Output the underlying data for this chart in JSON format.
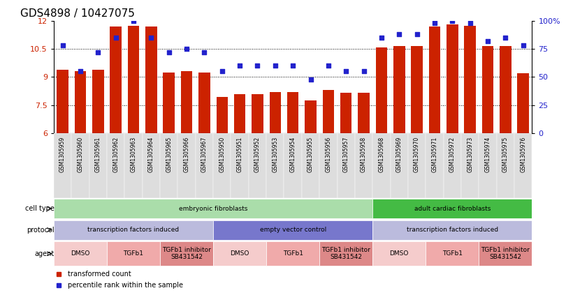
{
  "title": "GDS4898 / 10427075",
  "samples": [
    "GSM1305959",
    "GSM1305960",
    "GSM1305961",
    "GSM1305962",
    "GSM1305963",
    "GSM1305964",
    "GSM1305965",
    "GSM1305966",
    "GSM1305967",
    "GSM1305950",
    "GSM1305951",
    "GSM1305952",
    "GSM1305953",
    "GSM1305954",
    "GSM1305955",
    "GSM1305956",
    "GSM1305957",
    "GSM1305958",
    "GSM1305968",
    "GSM1305969",
    "GSM1305970",
    "GSM1305971",
    "GSM1305972",
    "GSM1305973",
    "GSM1305974",
    "GSM1305975",
    "GSM1305976"
  ],
  "bar_values": [
    9.4,
    9.3,
    9.4,
    11.7,
    11.75,
    11.7,
    9.25,
    9.3,
    9.25,
    7.95,
    8.1,
    8.1,
    8.2,
    8.2,
    7.75,
    8.3,
    8.15,
    8.15,
    10.6,
    10.65,
    10.65,
    11.7,
    11.8,
    11.75,
    10.65,
    10.65,
    9.2
  ],
  "dot_values": [
    78,
    55,
    72,
    85,
    100,
    85,
    72,
    75,
    72,
    55,
    60,
    60,
    60,
    60,
    48,
    60,
    55,
    55,
    85,
    88,
    88,
    98,
    100,
    98,
    82,
    85,
    78
  ],
  "bar_color": "#cc2200",
  "dot_color": "#2222cc",
  "ylim_left": [
    6,
    12
  ],
  "ylim_right": [
    0,
    100
  ],
  "yticks_left": [
    6,
    7.5,
    9,
    10.5,
    12
  ],
  "ytick_labels_left": [
    "6",
    "7.5",
    "9",
    "10.5",
    "12"
  ],
  "yticks_right": [
    0,
    25,
    50,
    75,
    100
  ],
  "ytick_labels_right": [
    "0",
    "25",
    "50",
    "75",
    "100%"
  ],
  "cell_type_groups": [
    {
      "label": "embryonic fibroblasts",
      "start": 0,
      "end": 17,
      "color": "#aaddaa"
    },
    {
      "label": "adult cardiac fibroblasts",
      "start": 18,
      "end": 26,
      "color": "#44bb44"
    }
  ],
  "protocol_groups": [
    {
      "label": "transcription factors induced",
      "start": 0,
      "end": 8,
      "color": "#bbbbdd"
    },
    {
      "label": "empty vector control",
      "start": 9,
      "end": 17,
      "color": "#7777cc"
    },
    {
      "label": "transcription factors induced",
      "start": 18,
      "end": 26,
      "color": "#bbbbdd"
    }
  ],
  "agent_groups": [
    {
      "label": "DMSO",
      "start": 0,
      "end": 2,
      "color": "#f5cccc"
    },
    {
      "label": "TGFb1",
      "start": 3,
      "end": 5,
      "color": "#f0aaaa"
    },
    {
      "label": "TGFb1 inhibitor\nSB431542",
      "start": 6,
      "end": 8,
      "color": "#dd8888"
    },
    {
      "label": "DMSO",
      "start": 9,
      "end": 11,
      "color": "#f5cccc"
    },
    {
      "label": "TGFb1",
      "start": 12,
      "end": 14,
      "color": "#f0aaaa"
    },
    {
      "label": "TGFb1 inhibitor\nSB431542",
      "start": 15,
      "end": 17,
      "color": "#dd8888"
    },
    {
      "label": "DMSO",
      "start": 18,
      "end": 20,
      "color": "#f5cccc"
    },
    {
      "label": "TGFb1",
      "start": 21,
      "end": 23,
      "color": "#f0aaaa"
    },
    {
      "label": "TGFb1 inhibitor\nSB431542",
      "start": 24,
      "end": 26,
      "color": "#dd8888"
    }
  ],
  "tick_bg_color": "#dddddd",
  "legend_items": [
    {
      "label": "transformed count",
      "color": "#cc2200"
    },
    {
      "label": "percentile rank within the sample",
      "color": "#2222cc"
    }
  ]
}
